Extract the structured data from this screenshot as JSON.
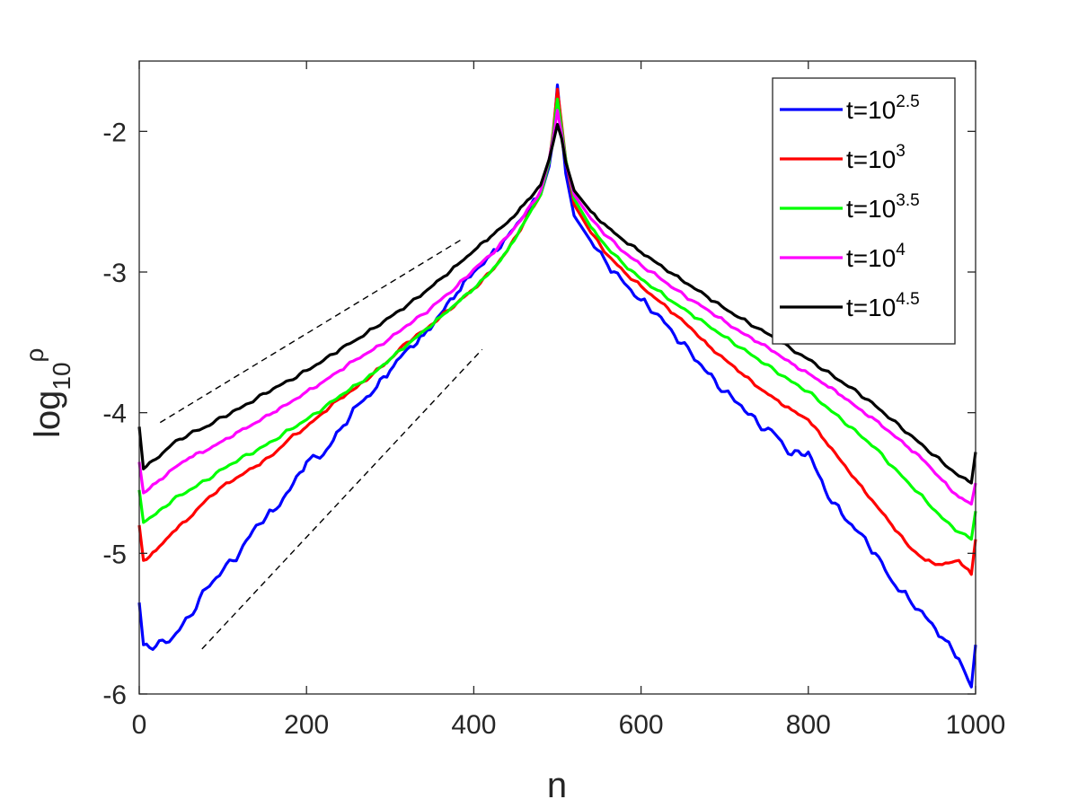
{
  "chart_data": {
    "type": "line",
    "title": "",
    "xlabel": "n",
    "ylabel_base": "log",
    "ylabel_sub": "10",
    "ylabel_sup": "ρ",
    "xlim": [
      0,
      1000
    ],
    "ylim": [
      -6,
      -1.5
    ],
    "xticks": [
      0,
      200,
      400,
      600,
      800,
      1000
    ],
    "xtick_labels": [
      "0",
      "200",
      "400",
      "600",
      "800",
      "1000"
    ],
    "yticks": [
      -6,
      -5,
      -4,
      -3,
      -2
    ],
    "ytick_labels": [
      "-6",
      "-5",
      "-4",
      "-3",
      "-2"
    ],
    "grid": false,
    "legend_position": "top-right",
    "series": [
      {
        "name": "t=10^2.5",
        "label_base": "t=10",
        "label_exp": "2.5",
        "color": "#0000ff",
        "x": [
          0,
          5,
          20,
          40,
          60,
          80,
          100,
          120,
          140,
          160,
          180,
          200,
          220,
          240,
          260,
          280,
          300,
          320,
          340,
          360,
          380,
          400,
          420,
          440,
          460,
          480,
          490,
          495,
          500,
          505,
          510,
          520,
          540,
          560,
          580,
          600,
          620,
          640,
          660,
          680,
          700,
          720,
          740,
          760,
          780,
          800,
          820,
          840,
          860,
          880,
          900,
          920,
          940,
          960,
          980,
          995,
          1000
        ],
        "y": [
          -5.35,
          -5.65,
          -5.66,
          -5.6,
          -5.45,
          -5.25,
          -5.12,
          -5.0,
          -4.8,
          -4.7,
          -4.55,
          -4.35,
          -4.3,
          -4.12,
          -3.95,
          -3.85,
          -3.7,
          -3.55,
          -3.45,
          -3.3,
          -3.15,
          -3.0,
          -2.88,
          -2.75,
          -2.6,
          -2.45,
          -2.25,
          -2.05,
          -1.67,
          -2.0,
          -2.3,
          -2.6,
          -2.78,
          -2.95,
          -3.08,
          -3.2,
          -3.3,
          -3.45,
          -3.58,
          -3.72,
          -3.85,
          -3.95,
          -4.08,
          -4.15,
          -4.3,
          -4.28,
          -4.55,
          -4.72,
          -4.85,
          -5.0,
          -5.2,
          -5.32,
          -5.45,
          -5.6,
          -5.75,
          -5.95,
          -5.65
        ]
      },
      {
        "name": "t=10^3",
        "label_base": "t=10",
        "label_exp": "3",
        "color": "#ff0000",
        "x": [
          0,
          5,
          20,
          40,
          60,
          80,
          100,
          120,
          140,
          160,
          180,
          200,
          220,
          240,
          260,
          280,
          300,
          320,
          340,
          360,
          380,
          400,
          420,
          440,
          460,
          480,
          490,
          495,
          500,
          505,
          510,
          520,
          540,
          560,
          580,
          600,
          620,
          640,
          660,
          680,
          700,
          720,
          740,
          760,
          780,
          800,
          820,
          840,
          860,
          880,
          900,
          920,
          940,
          960,
          980,
          995,
          1000
        ],
        "y": [
          -4.8,
          -5.05,
          -4.98,
          -4.85,
          -4.75,
          -4.62,
          -4.52,
          -4.45,
          -4.38,
          -4.3,
          -4.18,
          -4.1,
          -4.0,
          -3.9,
          -3.82,
          -3.72,
          -3.62,
          -3.5,
          -3.42,
          -3.32,
          -3.22,
          -3.12,
          -3.0,
          -2.85,
          -2.65,
          -2.45,
          -2.22,
          -2.0,
          -1.7,
          -1.95,
          -2.2,
          -2.52,
          -2.72,
          -2.88,
          -3.0,
          -3.1,
          -3.2,
          -3.3,
          -3.4,
          -3.52,
          -3.62,
          -3.72,
          -3.82,
          -3.9,
          -3.98,
          -4.05,
          -4.2,
          -4.35,
          -4.5,
          -4.65,
          -4.8,
          -4.95,
          -5.05,
          -5.08,
          -5.05,
          -5.15,
          -4.9
        ]
      },
      {
        "name": "t=10^3.5",
        "label_base": "t=10",
        "label_exp": "3.5",
        "color": "#00ff00",
        "x": [
          0,
          5,
          20,
          40,
          60,
          80,
          100,
          120,
          140,
          160,
          180,
          200,
          220,
          240,
          260,
          280,
          300,
          320,
          340,
          360,
          380,
          400,
          420,
          440,
          460,
          480,
          490,
          495,
          500,
          505,
          510,
          520,
          540,
          560,
          580,
          600,
          620,
          640,
          660,
          680,
          700,
          720,
          740,
          760,
          780,
          800,
          820,
          840,
          860,
          880,
          900,
          920,
          940,
          960,
          980,
          995,
          1000
        ],
        "y": [
          -4.55,
          -4.78,
          -4.72,
          -4.62,
          -4.55,
          -4.48,
          -4.4,
          -4.33,
          -4.27,
          -4.2,
          -4.12,
          -4.05,
          -3.97,
          -3.88,
          -3.8,
          -3.72,
          -3.62,
          -3.52,
          -3.42,
          -3.32,
          -3.22,
          -3.12,
          -3.0,
          -2.85,
          -2.65,
          -2.45,
          -2.22,
          -2.02,
          -1.77,
          -1.98,
          -2.2,
          -2.48,
          -2.68,
          -2.83,
          -2.95,
          -3.05,
          -3.13,
          -3.22,
          -3.3,
          -3.38,
          -3.46,
          -3.54,
          -3.62,
          -3.7,
          -3.78,
          -3.85,
          -3.95,
          -4.05,
          -4.15,
          -4.25,
          -4.38,
          -4.5,
          -4.62,
          -4.75,
          -4.85,
          -4.9,
          -4.7
        ]
      },
      {
        "name": "t=10^4",
        "label_base": "t=10",
        "label_exp": "4",
        "color": "#ff00ff",
        "x": [
          0,
          5,
          20,
          40,
          60,
          80,
          100,
          120,
          140,
          160,
          180,
          200,
          220,
          240,
          260,
          280,
          300,
          320,
          340,
          360,
          380,
          400,
          420,
          440,
          460,
          480,
          490,
          495,
          500,
          505,
          510,
          520,
          540,
          560,
          580,
          600,
          620,
          640,
          660,
          680,
          700,
          720,
          740,
          760,
          780,
          800,
          820,
          840,
          860,
          880,
          900,
          920,
          940,
          960,
          980,
          995,
          1000
        ],
        "y": [
          -4.35,
          -4.57,
          -4.5,
          -4.4,
          -4.32,
          -4.27,
          -4.2,
          -4.13,
          -4.07,
          -4.0,
          -3.93,
          -3.85,
          -3.78,
          -3.7,
          -3.62,
          -3.55,
          -3.47,
          -3.38,
          -3.3,
          -3.2,
          -3.1,
          -2.98,
          -2.88,
          -2.75,
          -2.6,
          -2.42,
          -2.2,
          -2.05,
          -1.85,
          -2.02,
          -2.22,
          -2.45,
          -2.62,
          -2.75,
          -2.86,
          -2.95,
          -3.03,
          -3.12,
          -3.2,
          -3.27,
          -3.35,
          -3.43,
          -3.5,
          -3.57,
          -3.65,
          -3.72,
          -3.8,
          -3.88,
          -3.97,
          -4.05,
          -4.15,
          -4.25,
          -4.35,
          -4.48,
          -4.6,
          -4.65,
          -4.5
        ]
      },
      {
        "name": "t=10^4.5",
        "label_base": "t=10",
        "label_exp": "4.5",
        "color": "#000000",
        "x": [
          0,
          5,
          20,
          40,
          60,
          80,
          100,
          120,
          140,
          160,
          180,
          200,
          220,
          240,
          260,
          280,
          300,
          320,
          340,
          360,
          380,
          400,
          420,
          440,
          460,
          480,
          490,
          495,
          500,
          505,
          510,
          520,
          540,
          560,
          580,
          600,
          620,
          640,
          660,
          680,
          700,
          720,
          740,
          760,
          780,
          800,
          820,
          840,
          860,
          880,
          900,
          920,
          940,
          960,
          980,
          995,
          1000
        ],
        "y": [
          -4.1,
          -4.4,
          -4.33,
          -4.22,
          -4.15,
          -4.1,
          -4.03,
          -3.97,
          -3.9,
          -3.83,
          -3.77,
          -3.7,
          -3.63,
          -3.55,
          -3.48,
          -3.4,
          -3.32,
          -3.24,
          -3.15,
          -3.05,
          -2.95,
          -2.85,
          -2.75,
          -2.65,
          -2.52,
          -2.38,
          -2.2,
          -2.08,
          -1.95,
          -2.05,
          -2.22,
          -2.42,
          -2.57,
          -2.68,
          -2.78,
          -2.86,
          -2.94,
          -3.02,
          -3.1,
          -3.18,
          -3.26,
          -3.33,
          -3.4,
          -3.47,
          -3.55,
          -3.62,
          -3.7,
          -3.78,
          -3.86,
          -3.95,
          -4.05,
          -4.15,
          -4.25,
          -4.35,
          -4.45,
          -4.5,
          -4.28
        ]
      }
    ],
    "reference_lines": [
      {
        "name": "reference-line-shallow",
        "x": [
          25,
          385
        ],
        "y": [
          -4.07,
          -2.77
        ],
        "style": "dashed",
        "color": "#000000"
      },
      {
        "name": "reference-line-steep",
        "x": [
          75,
          410
        ],
        "y": [
          -5.68,
          -3.55
        ],
        "style": "dashed",
        "color": "#000000"
      }
    ]
  }
}
